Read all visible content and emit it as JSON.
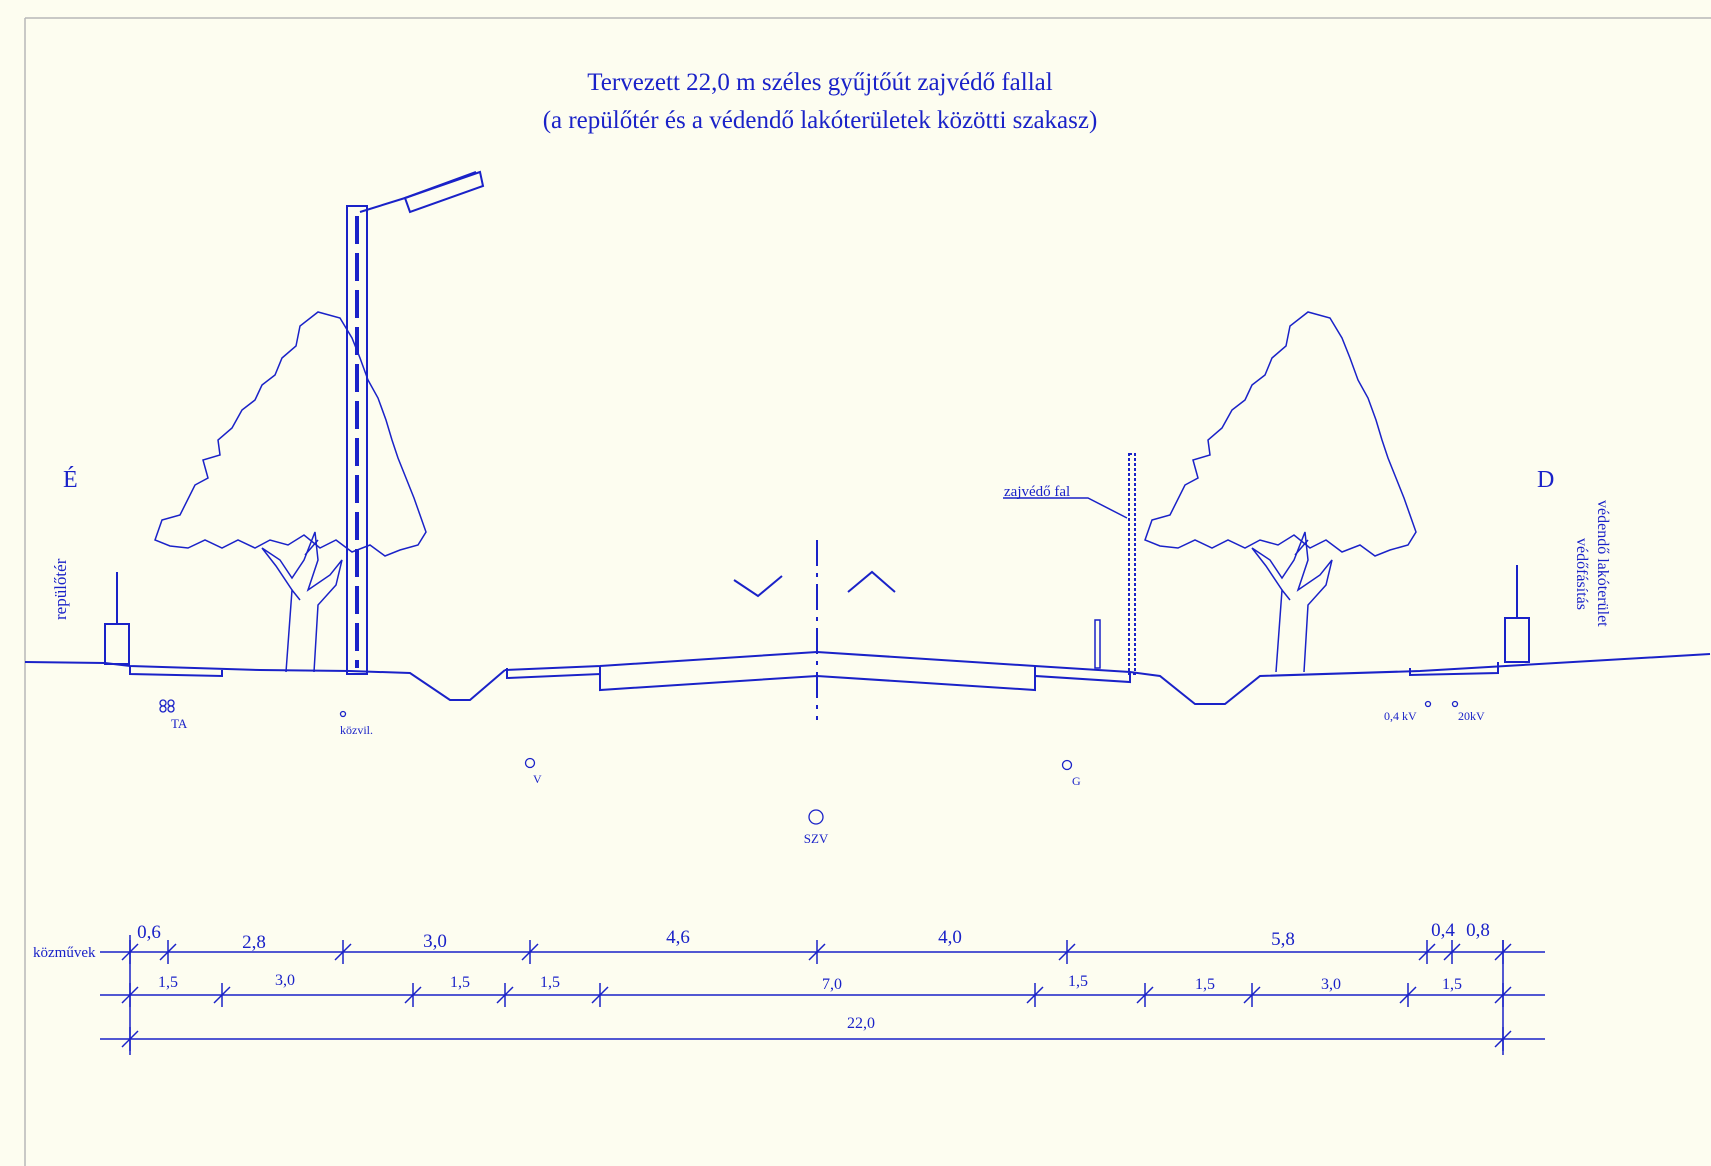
{
  "title": {
    "line1": "Tervezett 22,0 m széles gyűjtőút zajvédő fallal",
    "line2": "(a repülőtér és a védendő lakóterületek közötti szakasz)"
  },
  "orientation": {
    "north": "É",
    "south": "D"
  },
  "side_labels": {
    "left": "repülőtér",
    "right_line1": "védendő lakóterület",
    "right_line2": "védőfásítás"
  },
  "callouts": {
    "noise_wall": "zajvédő fal"
  },
  "utilities": {
    "telecom": "TA",
    "street_lighting": "közvil.",
    "water": "V",
    "gas": "G",
    "sewer": "SZV",
    "low_voltage": "0,4 kV",
    "medium_voltage": "20kV"
  },
  "dimensions": {
    "row_label": "közművek",
    "row1": [
      "0,6",
      "2,8",
      "3,0",
      "4,6",
      "4,0",
      "5,8",
      "0,4",
      "0,8"
    ],
    "row2": [
      "1,5",
      "3,0",
      "1,5",
      "1,5",
      "7,0",
      "1,5",
      "1,5",
      "3,0",
      "1,5"
    ],
    "total": "22,0"
  },
  "colors": {
    "ink": "#1a22c8",
    "background": "#fdfdf0",
    "frame": "#b0b0b0"
  }
}
